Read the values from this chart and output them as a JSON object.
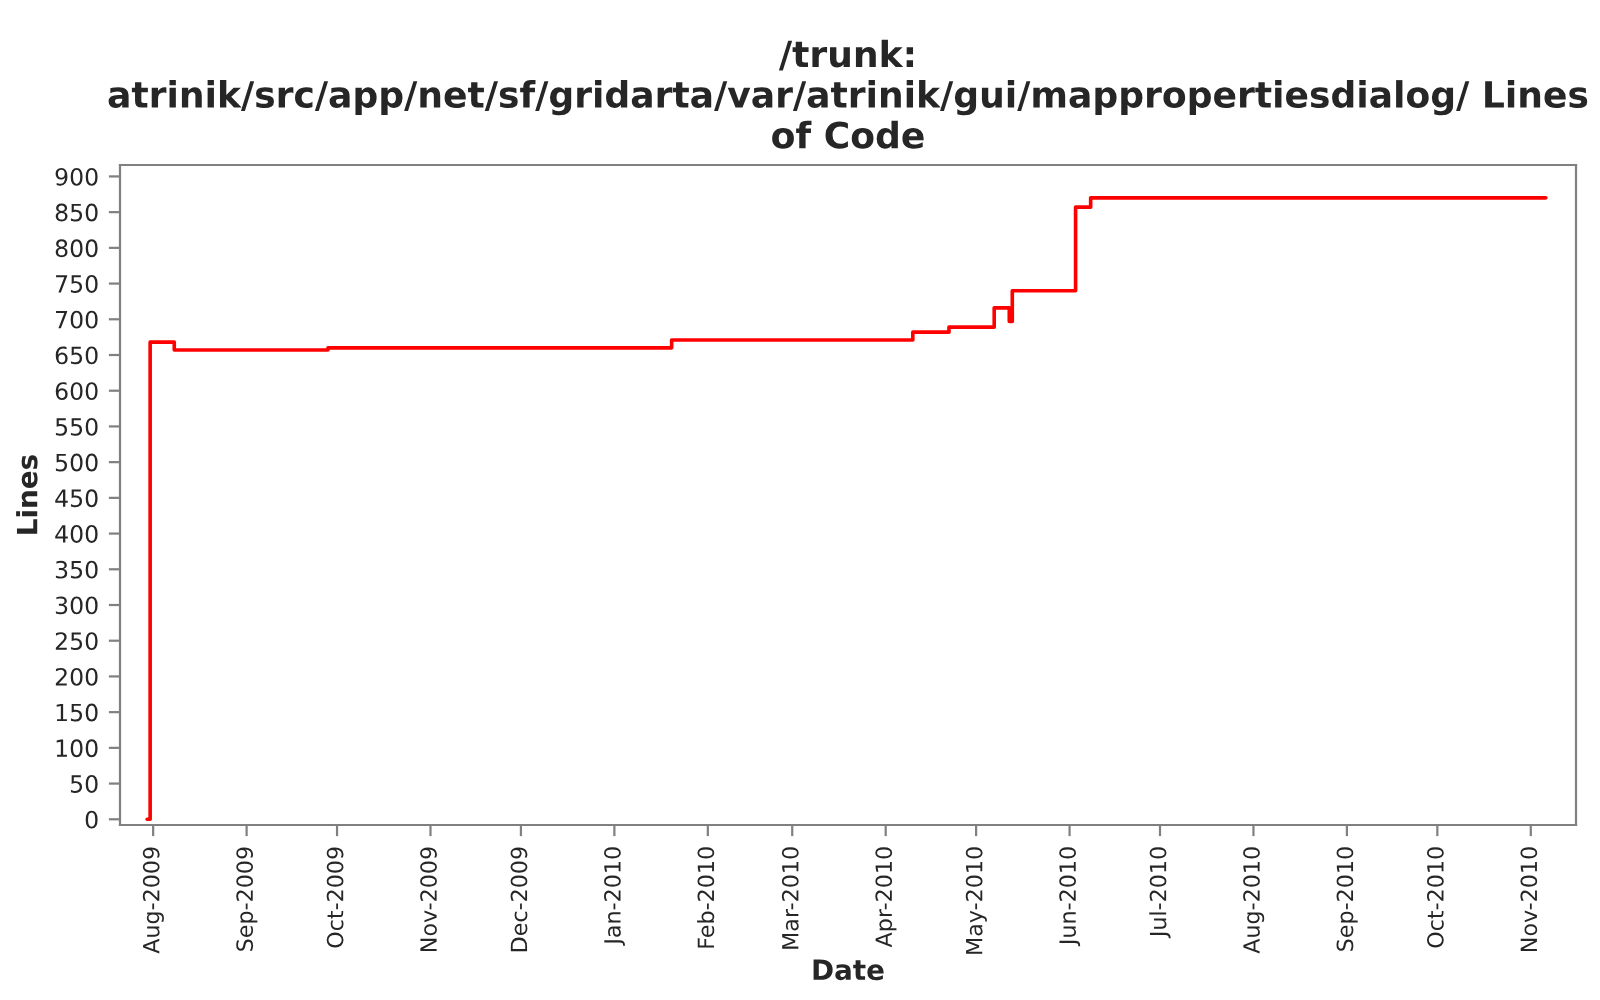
{
  "chart_data": {
    "type": "step",
    "title": "/trunk: atrinik/src/app/net/sf/gridarta/var/atrinik/gui/mappropertiesdialog/ Lines of Code",
    "xlabel": "Date",
    "ylabel": "Lines",
    "x": [
      "2009-07-30",
      "2009-07-31",
      "2009-08-08",
      "2009-09-28",
      "2010-01-20",
      "2010-04-10",
      "2010-04-22",
      "2010-05-07",
      "2010-05-12",
      "2010-05-13",
      "2010-06-03",
      "2010-06-08",
      "2010-11-06"
    ],
    "series": [
      {
        "color": "#ff0000",
        "values": [
          0,
          668,
          657,
          660,
          671,
          682,
          689,
          716,
          697,
          740,
          857,
          870,
          870
        ]
      }
    ],
    "xlim": [
      "2009-07-21",
      "2010-11-16"
    ],
    "xticks": [
      {
        "value": "2009-08-01",
        "label": "Aug-2009"
      },
      {
        "value": "2009-09-01",
        "label": "Sep-2009"
      },
      {
        "value": "2009-10-01",
        "label": "Oct-2009"
      },
      {
        "value": "2009-11-01",
        "label": "Nov-2009"
      },
      {
        "value": "2009-12-01",
        "label": "Dec-2009"
      },
      {
        "value": "2010-01-01",
        "label": "Jan-2010"
      },
      {
        "value": "2010-02-01",
        "label": "Feb-2010"
      },
      {
        "value": "2010-03-01",
        "label": "Mar-2010"
      },
      {
        "value": "2010-04-01",
        "label": "Apr-2010"
      },
      {
        "value": "2010-05-01",
        "label": "May-2010"
      },
      {
        "value": "2010-06-01",
        "label": "Jun-2010"
      },
      {
        "value": "2010-07-01",
        "label": "Jul-2010"
      },
      {
        "value": "2010-08-01",
        "label": "Aug-2010"
      },
      {
        "value": "2010-09-01",
        "label": "Sep-2010"
      },
      {
        "value": "2010-10-01",
        "label": "Oct-2010"
      },
      {
        "value": "2010-11-01",
        "label": "Nov-2010"
      }
    ],
    "ylim": [
      -8,
      916
    ],
    "yticks": [
      0,
      50,
      100,
      150,
      200,
      250,
      300,
      350,
      400,
      450,
      500,
      550,
      600,
      650,
      700,
      750,
      800,
      850,
      900
    ],
    "grid": false,
    "legend": false,
    "line_style": "solid"
  }
}
